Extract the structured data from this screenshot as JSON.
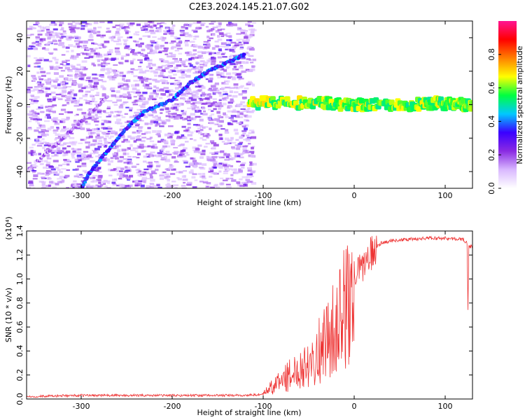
{
  "title": "C2E3.2024.145.21.07.G02",
  "chart_data": [
    {
      "type": "heatmap",
      "xlabel": "Height of straight line (km)",
      "ylabel": "Frequency (Hz)",
      "xlim": [
        -360,
        130
      ],
      "ylim": [
        -50,
        50
      ],
      "xticks": [
        -300,
        -200,
        -100,
        0,
        100
      ],
      "xtick_labels": [
        "-300",
        "-200",
        "-100",
        "0",
        "100"
      ],
      "yticks": [
        -40,
        -20,
        0,
        20,
        40
      ],
      "ytick_labels": [
        "-40",
        "-20",
        "0",
        "20",
        "40"
      ],
      "colorbar": {
        "label": "Normalized spectral amplitude",
        "range": [
          0,
          1
        ],
        "ticks": [
          0.0,
          0.2,
          0.4,
          0.6,
          0.8
        ],
        "tick_labels": [
          "0.0",
          "0.2",
          "0.4",
          "0.6",
          "0.8"
        ],
        "colormap": [
          "#ffffff",
          "#d9b8ff",
          "#8a2be2",
          "#3a00ff",
          "#00c8ff",
          "#00ff40",
          "#ffff00",
          "#ff8000",
          "#ff0000",
          "#ff1493"
        ]
      },
      "features": [
        {
          "name": "diagonal trace",
          "x": [
            -300,
            -290,
            -270,
            -250,
            -230,
            -200,
            -180,
            -160,
            -140,
            -120
          ],
          "y": [
            -50,
            -40,
            -27,
            -14,
            -4,
            3,
            13,
            20,
            25,
            30
          ],
          "amplitude": 0.35
        },
        {
          "name": "secondary diagonal",
          "x": [
            -360,
            -330,
            -300,
            -270
          ],
          "y": [
            -40,
            -25,
            -10,
            5
          ],
          "amplitude": 0.15
        },
        {
          "name": "carrier band",
          "x": [
            -115,
            -80,
            -40,
            -10,
            20,
            60,
            90,
            110,
            130
          ],
          "y": [
            1,
            1,
            1,
            0,
            0,
            0,
            1,
            0,
            0
          ],
          "amplitude": 0.6
        }
      ]
    },
    {
      "type": "line",
      "xlabel": "Height of straight line (km)",
      "ylabel": "SNR (10 * v/v)",
      "yscale_label": "(x10⁴)",
      "xlim": [
        -360,
        130
      ],
      "ylim": [
        0,
        1.4
      ],
      "xticks": [
        -300,
        -200,
        -100,
        0,
        100
      ],
      "xtick_labels": [
        "-300",
        "-200",
        "-100",
        "0",
        "100"
      ],
      "yticks": [
        0.0,
        0.2,
        0.4,
        0.6,
        0.8,
        1.0,
        1.2,
        1.4
      ],
      "ytick_labels": [
        "0.0",
        "0.2",
        "0.4",
        "0.6",
        "0.8",
        "1.0",
        "1.2",
        "1.4"
      ],
      "series": [
        {
          "color": "#ee3333",
          "x": [
            -360,
            -300,
            -200,
            -120,
            -100,
            -95,
            -90,
            -80,
            -70,
            -60,
            -50,
            -40,
            -30,
            -20,
            -15,
            -10,
            0,
            10,
            20,
            30,
            40,
            60,
            80,
            100,
            120,
            124,
            125,
            126,
            130
          ],
          "y": [
            0.02,
            0.03,
            0.03,
            0.03,
            0.04,
            0.1,
            0.12,
            0.2,
            0.25,
            0.32,
            0.4,
            0.48,
            0.62,
            0.75,
            0.85,
            0.95,
            1.05,
            1.15,
            1.25,
            1.3,
            1.32,
            1.33,
            1.34,
            1.34,
            1.33,
            1.3,
            0.75,
            1.27,
            1.27
          ]
        }
      ]
    }
  ]
}
